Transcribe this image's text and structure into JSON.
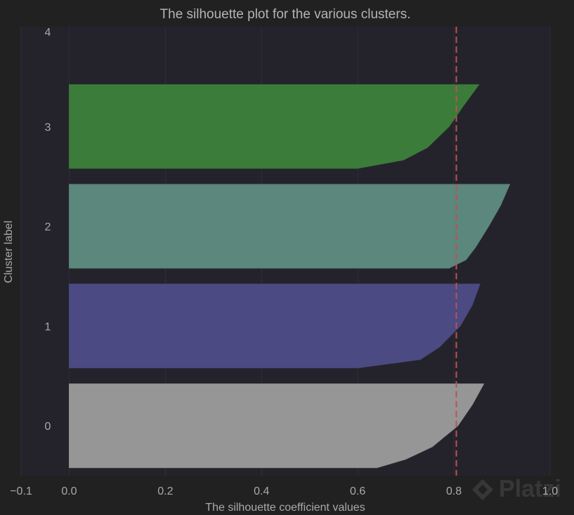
{
  "chart_data": {
    "type": "area",
    "title": "The silhouette plot for the various clusters.",
    "xlabel": "The silhouette coefficient values",
    "ylabel": "Cluster label",
    "xlim": [
      -0.1,
      1.0
    ],
    "ylim": [
      -0.5,
      4.0
    ],
    "x_ticks": [
      "−0.1",
      "0.0",
      "0.2",
      "0.4",
      "0.6",
      "0.8",
      "1.0"
    ],
    "y_ticks": [
      "0",
      "1",
      "2",
      "3",
      "4"
    ],
    "grid": true,
    "average_silhouette_score": 0.805,
    "series": [
      {
        "name": "0",
        "color": "#969696",
        "band": [
          -0.42,
          0.42
        ],
        "profile": [
          [
            0.0,
            0.862
          ],
          [
            0.25,
            0.838
          ],
          [
            0.5,
            0.808
          ],
          [
            0.75,
            0.755
          ],
          [
            0.9,
            0.7
          ],
          [
            1.0,
            0.64
          ]
        ]
      },
      {
        "name": "1",
        "color": "#4b4a82",
        "band": [
          0.58,
          1.42
        ],
        "profile": [
          [
            0.0,
            0.854
          ],
          [
            0.25,
            0.838
          ],
          [
            0.5,
            0.813
          ],
          [
            0.75,
            0.77
          ],
          [
            0.9,
            0.73
          ],
          [
            1.0,
            0.6
          ]
        ]
      },
      {
        "name": "2",
        "color": "#5b877d",
        "band": [
          1.58,
          2.42
        ],
        "profile": [
          [
            0.0,
            0.916
          ],
          [
            0.25,
            0.897
          ],
          [
            0.5,
            0.872
          ],
          [
            0.75,
            0.845
          ],
          [
            0.9,
            0.825
          ],
          [
            1.0,
            0.79
          ]
        ]
      },
      {
        "name": "3",
        "color": "#3b7c3a",
        "band": [
          2.58,
          3.42
        ],
        "profile": [
          [
            0.0,
            0.852
          ],
          [
            0.25,
            0.82
          ],
          [
            0.5,
            0.79
          ],
          [
            0.75,
            0.745
          ],
          [
            0.9,
            0.695
          ],
          [
            1.0,
            0.6
          ]
        ]
      }
    ],
    "colors": {
      "avg_line": "#c05050",
      "plot_bg": "#24232b",
      "grid": "#2f2e37"
    }
  },
  "watermark": "Platzi"
}
